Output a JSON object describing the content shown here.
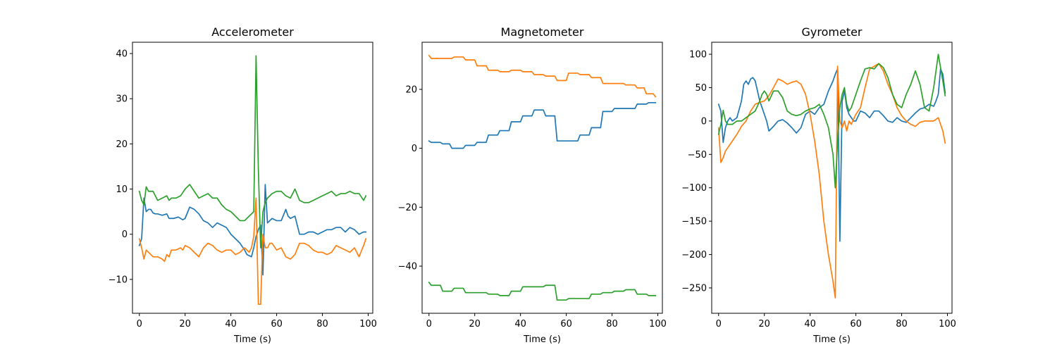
{
  "chart_data": [
    {
      "type": "line",
      "title": "Accelerometer",
      "xlabel": "Time (s)",
      "ylabel": "",
      "xlim": [
        -3,
        102
      ],
      "ylim": [
        -17.5,
        42.5
      ],
      "xticks": [
        0,
        20,
        40,
        60,
        80,
        100
      ],
      "yticks": [
        -10,
        0,
        10,
        20,
        30,
        40
      ],
      "xtick_labels": [
        "0",
        "20",
        "40",
        "60",
        "80",
        "100"
      ],
      "ytick_labels": [
        "−10",
        "0",
        "10",
        "20",
        "30",
        "40"
      ],
      "grid": false,
      "series": [
        {
          "color": "#1f77b4",
          "x": [
            0,
            1,
            2,
            3,
            4,
            5,
            6,
            7,
            8,
            10,
            12,
            13,
            15,
            17,
            19,
            20,
            22,
            24,
            26,
            28,
            30,
            32,
            34,
            36,
            38,
            40,
            42,
            44,
            46,
            47,
            49,
            50,
            51,
            52,
            53,
            54,
            55,
            56,
            58,
            60,
            62,
            64,
            65,
            66,
            68,
            70,
            72,
            74,
            76,
            78,
            80,
            82,
            84,
            86,
            88,
            90,
            92,
            94,
            96,
            98,
            99
          ],
          "y": [
            -2.5,
            -1,
            8,
            5,
            5.5,
            5.5,
            4.7,
            4.5,
            4.5,
            4.2,
            4.5,
            3.5,
            3.5,
            3.8,
            3.2,
            3.5,
            6,
            5.5,
            4.5,
            3,
            2.5,
            1.5,
            2.5,
            2,
            1.5,
            0,
            -1,
            -2,
            -3.5,
            -4.5,
            -5,
            -3,
            -0.5,
            1,
            2,
            -9,
            11,
            2.5,
            3.5,
            3,
            3,
            5.5,
            4,
            3.5,
            4,
            0,
            0,
            0.5,
            0.5,
            0,
            0.5,
            1,
            1,
            1.5,
            1.5,
            0.5,
            1.5,
            1,
            0,
            0.5,
            0.5
          ]
        },
        {
          "color": "#ff7f0e",
          "x": [
            0,
            1,
            2,
            3,
            4,
            5,
            6,
            8,
            10,
            11,
            12,
            13,
            14,
            16,
            18,
            19,
            20,
            22,
            24,
            26,
            28,
            30,
            32,
            34,
            36,
            38,
            40,
            42,
            44,
            46,
            48,
            49,
            50,
            51,
            52,
            53,
            54,
            55,
            56,
            57,
            58,
            60,
            62,
            64,
            66,
            68,
            70,
            72,
            74,
            76,
            78,
            80,
            82,
            84,
            86,
            88,
            90,
            92,
            94,
            96,
            98,
            99
          ],
          "y": [
            -1,
            -3,
            -5.5,
            -3.5,
            -4,
            -4.5,
            -5,
            -5,
            -5.5,
            -6,
            -4.5,
            -5,
            -3.5,
            -3.5,
            -3,
            -3.5,
            -2.5,
            -3,
            -4,
            -5,
            -3,
            -2,
            -2.5,
            -3.5,
            -4,
            -3.5,
            -3.5,
            -4.5,
            -4,
            -3,
            -4,
            -3,
            -0.5,
            8,
            -15.5,
            -15.5,
            0,
            -3,
            -3,
            -2,
            -2,
            -3.5,
            -3,
            -5,
            -5.5,
            -4.5,
            -2,
            -2,
            -2.5,
            -3.5,
            -4,
            -4,
            -4.5,
            -4,
            -2.5,
            -3,
            -3.5,
            -4,
            -3,
            -5,
            -2.5,
            -1
          ]
        },
        {
          "color": "#2ca02c",
          "x": [
            0,
            1,
            2,
            3,
            4,
            6,
            8,
            10,
            12,
            13,
            14,
            16,
            18,
            20,
            22,
            24,
            26,
            28,
            30,
            32,
            34,
            36,
            38,
            40,
            42,
            44,
            46,
            48,
            50,
            51,
            52,
            53,
            54,
            55,
            56,
            58,
            60,
            62,
            64,
            66,
            68,
            70,
            72,
            74,
            76,
            78,
            80,
            82,
            84,
            86,
            88,
            90,
            92,
            94,
            96,
            98,
            99
          ],
          "y": [
            9.5,
            7.5,
            6.5,
            10.5,
            9.5,
            9.5,
            7.5,
            8,
            8.5,
            7.5,
            8,
            8,
            8.5,
            10,
            11,
            9.5,
            8,
            8.5,
            9,
            8,
            8,
            6.5,
            5.5,
            5,
            4,
            3,
            3,
            4,
            5,
            39.5,
            14.5,
            -3,
            5,
            7,
            8,
            9,
            9.5,
            9.5,
            8.5,
            8,
            10,
            7.5,
            7,
            7,
            7.5,
            8,
            8.5,
            9,
            9.5,
            8.5,
            9,
            9,
            9.5,
            9,
            9,
            7.5,
            8.5
          ]
        }
      ]
    },
    {
      "type": "line",
      "title": "Magnetometer",
      "xlabel": "Time (s)",
      "ylabel": "",
      "xlim": [
        -3,
        102
      ],
      "ylim": [
        -56,
        36
      ],
      "xticks": [
        0,
        20,
        40,
        60,
        80,
        100
      ],
      "yticks": [
        -40,
        -20,
        0,
        20
      ],
      "xtick_labels": [
        "0",
        "20",
        "40",
        "60",
        "80",
        "100"
      ],
      "ytick_labels": [
        "−40",
        "−20",
        "0",
        "20"
      ],
      "grid": false,
      "series": [
        {
          "color": "#1f77b4",
          "x": [
            0,
            1,
            3,
            5,
            6,
            9,
            10,
            11,
            15,
            16,
            20,
            21,
            25,
            26,
            30,
            31,
            35,
            36,
            40,
            41,
            45,
            46,
            50,
            51,
            55,
            56,
            65,
            66,
            70,
            71,
            75,
            76,
            80,
            81,
            85,
            86,
            90,
            91,
            95,
            96,
            99
          ],
          "y": [
            2.5,
            2,
            2,
            2,
            1.5,
            1.5,
            0,
            0,
            0,
            1,
            1,
            2,
            2,
            4.5,
            4.5,
            6,
            6,
            9,
            9,
            11,
            11,
            13,
            13,
            11,
            11,
            2.5,
            2.5,
            4.5,
            4.5,
            7,
            7,
            12.5,
            12.5,
            13.5,
            13.5,
            13.5,
            13.5,
            15,
            15,
            15.5,
            15.5
          ]
        },
        {
          "color": "#ff7f0e",
          "x": [
            0,
            1,
            10,
            11,
            15,
            16,
            20,
            21,
            25,
            26,
            30,
            31,
            35,
            36,
            40,
            41,
            45,
            46,
            50,
            51,
            55,
            56,
            60,
            61,
            65,
            66,
            70,
            71,
            75,
            76,
            80,
            81,
            85,
            86,
            90,
            91,
            94,
            95,
            98,
            99
          ],
          "y": [
            31.5,
            30.5,
            30.5,
            31,
            31,
            30,
            30,
            28,
            28,
            26.5,
            26.5,
            26,
            26,
            26.5,
            26.5,
            26,
            26,
            25,
            25,
            24.5,
            24.5,
            23,
            23,
            25.5,
            25.5,
            25,
            25,
            24,
            24,
            22,
            22,
            22,
            22,
            21.5,
            21.5,
            20.5,
            20.5,
            18.5,
            18.5,
            17.5
          ]
        },
        {
          "color": "#2ca02c",
          "x": [
            0,
            1,
            5,
            6,
            10,
            11,
            15,
            16,
            20,
            21,
            25,
            26,
            30,
            31,
            35,
            36,
            40,
            41,
            45,
            46,
            50,
            51,
            55,
            56,
            60,
            61,
            70,
            71,
            75,
            76,
            80,
            81,
            85,
            86,
            90,
            91,
            95,
            96,
            99
          ],
          "y": [
            -45.5,
            -46.5,
            -46.5,
            -48.5,
            -48.5,
            -47.5,
            -47.5,
            -49,
            -49,
            -49,
            -49,
            -49.5,
            -49.5,
            -50,
            -50,
            -48.5,
            -48.5,
            -47,
            -47,
            -47,
            -47,
            -46.5,
            -46.5,
            -51.5,
            -51.5,
            -51,
            -51,
            -49.5,
            -49.5,
            -49,
            -49,
            -48.5,
            -48.5,
            -48,
            -48,
            -49.5,
            -49.5,
            -50,
            -50
          ]
        }
      ]
    },
    {
      "type": "line",
      "title": "Gyrometer",
      "xlabel": "Time (s)",
      "ylabel": "",
      "xlim": [
        -3,
        102
      ],
      "ylim": [
        -288,
        118
      ],
      "xticks": [
        0,
        20,
        40,
        60,
        80,
        100
      ],
      "yticks": [
        -250,
        -200,
        -150,
        -100,
        -50,
        0,
        50,
        100
      ],
      "xtick_labels": [
        "0",
        "20",
        "40",
        "60",
        "80",
        "100"
      ],
      "ytick_labels": [
        "−250",
        "−200",
        "−150",
        "−100",
        "−50",
        "0",
        "50",
        "100"
      ],
      "grid": false,
      "series": [
        {
          "color": "#1f77b4",
          "x": [
            0,
            1,
            2,
            3,
            4,
            5,
            6,
            8,
            10,
            11,
            12,
            13,
            14,
            15,
            16,
            17,
            18,
            19,
            20,
            21,
            22,
            24,
            26,
            28,
            30,
            32,
            34,
            36,
            38,
            40,
            42,
            44,
            46,
            48,
            50,
            51,
            52,
            53,
            54,
            55,
            56,
            57,
            58,
            59,
            60,
            62,
            64,
            66,
            68,
            70,
            72,
            74,
            76,
            78,
            80,
            82,
            84,
            86,
            88,
            90,
            92,
            94,
            95,
            96,
            97,
            98,
            99
          ],
          "y": [
            25,
            15,
            -32,
            -10,
            0,
            5,
            0,
            5,
            30,
            55,
            60,
            55,
            63,
            65,
            60,
            45,
            30,
            20,
            10,
            0,
            -15,
            -8,
            0,
            2,
            -3,
            -10,
            -18,
            -10,
            10,
            15,
            10,
            20,
            25,
            45,
            60,
            70,
            78,
            -180,
            30,
            45,
            20,
            10,
            5,
            0,
            0,
            15,
            12,
            5,
            15,
            15,
            8,
            0,
            -2,
            5,
            0,
            -2,
            5,
            12,
            18,
            20,
            25,
            22,
            30,
            40,
            78,
            70,
            42
          ]
        },
        {
          "color": "#ff7f0e",
          "x": [
            0,
            1,
            2,
            3,
            4,
            5,
            6,
            8,
            10,
            12,
            14,
            16,
            18,
            20,
            22,
            24,
            26,
            28,
            30,
            32,
            34,
            36,
            38,
            40,
            42,
            44,
            46,
            48,
            50,
            51,
            52,
            53,
            54,
            55,
            56,
            57,
            58,
            60,
            62,
            64,
            66,
            68,
            70,
            72,
            74,
            76,
            78,
            80,
            82,
            84,
            86,
            88,
            90,
            92,
            94,
            96,
            98,
            99
          ],
          "y": [
            -10,
            -62,
            -55,
            -45,
            -40,
            -35,
            -30,
            -20,
            -8,
            0,
            15,
            25,
            28,
            30,
            38,
            50,
            63,
            60,
            55,
            58,
            60,
            55,
            40,
            10,
            -30,
            -80,
            -150,
            -200,
            -240,
            -265,
            82,
            0,
            -10,
            0,
            -15,
            0,
            -5,
            10,
            20,
            50,
            78,
            82,
            86,
            75,
            55,
            40,
            20,
            8,
            0,
            -5,
            -8,
            -2,
            0,
            0,
            0,
            5,
            -15,
            -33
          ]
        },
        {
          "color": "#2ca02c",
          "x": [
            0,
            1,
            2,
            3,
            4,
            6,
            8,
            10,
            12,
            14,
            16,
            18,
            19,
            20,
            21,
            22,
            24,
            26,
            28,
            30,
            32,
            34,
            36,
            38,
            40,
            42,
            44,
            46,
            48,
            50,
            51,
            52,
            53,
            54,
            55,
            56,
            57,
            58,
            60,
            62,
            64,
            66,
            68,
            70,
            72,
            74,
            76,
            78,
            80,
            82,
            84,
            86,
            88,
            90,
            92,
            94,
            96,
            97,
            98,
            99
          ],
          "y": [
            -20,
            -5,
            16,
            0,
            -5,
            -5,
            0,
            0,
            5,
            10,
            15,
            30,
            40,
            45,
            40,
            30,
            45,
            45,
            35,
            15,
            10,
            8,
            10,
            15,
            18,
            20,
            25,
            10,
            -10,
            -50,
            -100,
            -30,
            20,
            40,
            50,
            25,
            15,
            20,
            40,
            60,
            78,
            80,
            78,
            86,
            80,
            65,
            40,
            25,
            20,
            40,
            55,
            75,
            55,
            20,
            15,
            50,
            100,
            80,
            60,
            38
          ]
        }
      ]
    }
  ]
}
